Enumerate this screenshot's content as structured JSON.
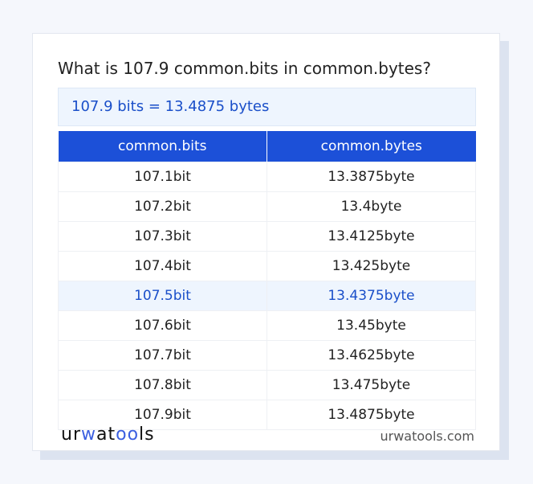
{
  "title": "What is 107.9 common.bits in common.bytes?",
  "result": "107.9 bits = 13.4875 bytes",
  "table": {
    "headers": [
      "common.bits",
      "common.bytes"
    ],
    "rows": [
      [
        "107.1bit",
        "13.3875byte"
      ],
      [
        "107.2bit",
        "13.4byte"
      ],
      [
        "107.3bit",
        "13.4125byte"
      ],
      [
        "107.4bit",
        "13.425byte"
      ],
      [
        "107.5bit",
        "13.4375byte"
      ],
      [
        "107.6bit",
        "13.45byte"
      ],
      [
        "107.7bit",
        "13.4625byte"
      ],
      [
        "107.8bit",
        "13.475byte"
      ],
      [
        "107.9bit",
        "13.4875byte"
      ]
    ],
    "highlighted_row": 4
  },
  "footer": {
    "logo": "urwatools",
    "logo_parts": [
      "ur",
      "w",
      "at",
      "oo",
      "ls"
    ],
    "site": "urwatools.com"
  },
  "colors": {
    "accent": "#1c50d8",
    "highlight_bg": "#eef5fe"
  }
}
